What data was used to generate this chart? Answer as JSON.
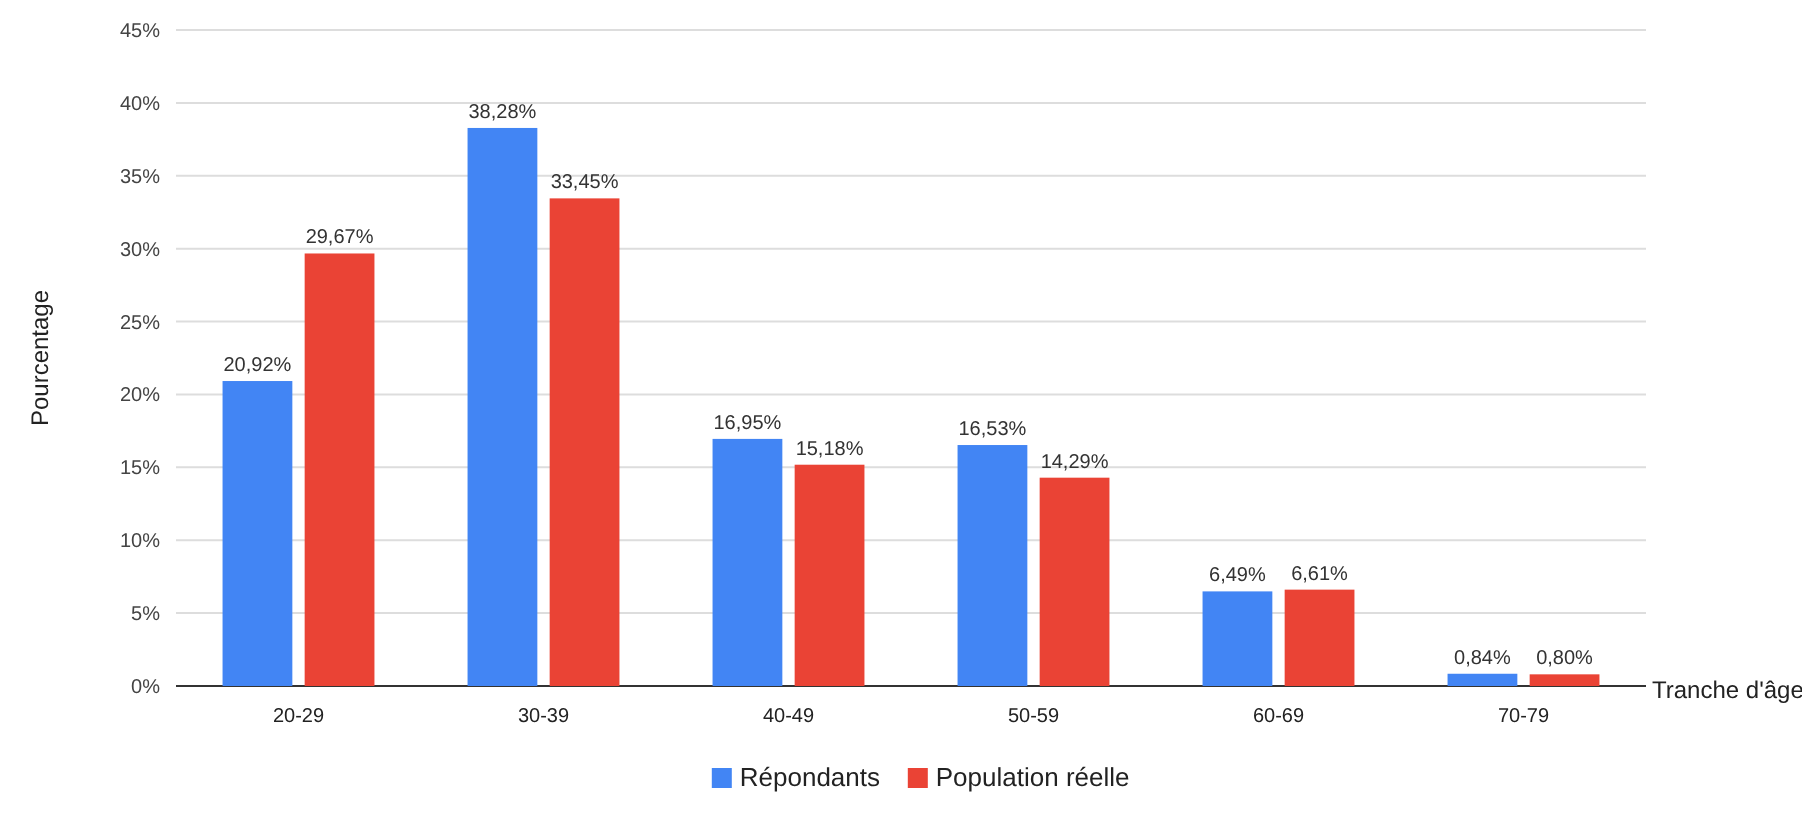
{
  "chart_data": {
    "type": "bar",
    "xlabel": "Tranche d'âge",
    "ylabel": "Pourcentage",
    "categories": [
      "20-29",
      "30-39",
      "40-49",
      "50-59",
      "60-69",
      "70-79"
    ],
    "series": [
      {
        "name": "Répondants",
        "color": "#4285f4",
        "values": [
          20.92,
          38.28,
          16.95,
          16.53,
          6.49,
          0.84
        ],
        "value_labels": [
          "20,92%",
          "38,28%",
          "16,95%",
          "16,53%",
          "6,49%",
          "0,84%"
        ]
      },
      {
        "name": "Population réelle",
        "color": "#ea4335",
        "values": [
          29.67,
          33.45,
          15.18,
          14.29,
          6.61,
          0.8
        ],
        "value_labels": [
          "29,67%",
          "33,45%",
          "15,18%",
          "14,29%",
          "6,61%",
          "0,80%"
        ]
      }
    ],
    "ylim": [
      0,
      45
    ],
    "yticks": [
      {
        "value": 0,
        "label": "0%"
      },
      {
        "value": 5,
        "label": "5%"
      },
      {
        "value": 10,
        "label": "10%"
      },
      {
        "value": 15,
        "label": "15%"
      },
      {
        "value": 20,
        "label": "20%"
      },
      {
        "value": 25,
        "label": "25%"
      },
      {
        "value": 30,
        "label": "30%"
      },
      {
        "value": 35,
        "label": "35%"
      },
      {
        "value": 40,
        "label": "40%"
      },
      {
        "value": 45,
        "label": "45%"
      }
    ],
    "grid": "y",
    "legend": "bottom"
  }
}
